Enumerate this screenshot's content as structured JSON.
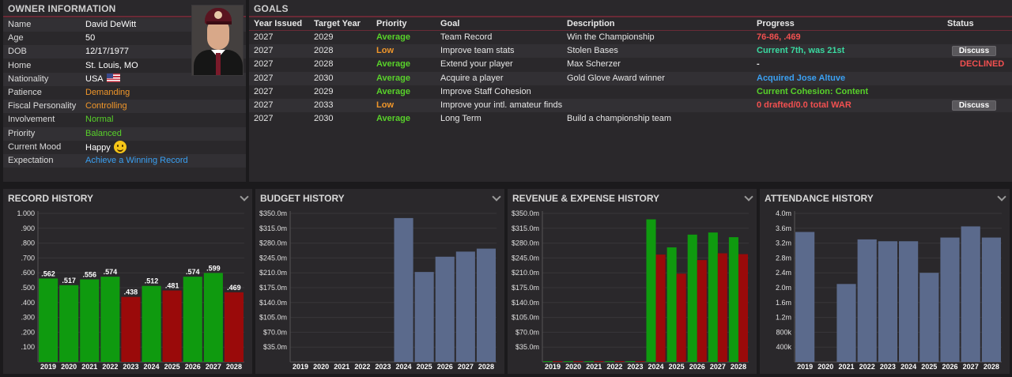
{
  "owner": {
    "title": "OWNER INFORMATION",
    "rows": [
      {
        "label": "Name",
        "value": "David DeWitt"
      },
      {
        "label": "Age",
        "value": "50"
      },
      {
        "label": "DOB",
        "value": "12/17/1977"
      },
      {
        "label": "Home",
        "value": "St. Louis, MO"
      },
      {
        "label": "Nationality",
        "value": "USA"
      },
      {
        "label": "Patience",
        "value": "Demanding"
      },
      {
        "label": "Fiscal Personality",
        "value": "Controlling"
      },
      {
        "label": "Involvement",
        "value": "Normal"
      },
      {
        "label": "Priority",
        "value": "Balanced"
      },
      {
        "label": "Current Mood",
        "value": "Happy"
      },
      {
        "label": "Expectation",
        "value": "Achieve a Winning Record"
      }
    ],
    "icons": {
      "flag": "us-flag-icon",
      "mood": "smiley-icon",
      "portrait": "owner-portrait"
    }
  },
  "goals": {
    "title": "GOALS",
    "headers": [
      "Year Issued",
      "Target Year",
      "Priority",
      "Goal",
      "Description",
      "Progress",
      "Status"
    ],
    "rows": [
      {
        "issued": "2027",
        "target": "2029",
        "priority": "Average",
        "goal": "Team Record",
        "desc": "Win the Championship",
        "progress": "76-86, .469",
        "status": ""
      },
      {
        "issued": "2027",
        "target": "2028",
        "priority": "Low",
        "goal": "Improve team stats",
        "desc": "Stolen Bases",
        "progress": "Current 7th, was 21st",
        "status": "Discuss"
      },
      {
        "issued": "2027",
        "target": "2028",
        "priority": "Average",
        "goal": "Extend your player",
        "desc": "Max Scherzer",
        "progress": "-",
        "status": "DECLINED"
      },
      {
        "issued": "2027",
        "target": "2030",
        "priority": "Average",
        "goal": "Acquire a player",
        "desc": "Gold Glove Award winner",
        "progress": "Acquired Jose Altuve",
        "status": ""
      },
      {
        "issued": "2027",
        "target": "2029",
        "priority": "Average",
        "goal": "Improve Staff Cohesion",
        "desc": "",
        "progress": "Current Cohesion: Content",
        "status": ""
      },
      {
        "issued": "2027",
        "target": "2033",
        "priority": "Low",
        "goal": "Improve your intl. amateur finds",
        "desc": "",
        "progress": "0 drafted/0.0 total WAR",
        "status": "Discuss"
      },
      {
        "issued": "2027",
        "target": "2030",
        "priority": "Average",
        "goal": "Long Term",
        "desc": "Build a championship team",
        "progress": "",
        "status": ""
      }
    ]
  },
  "colors": {
    "green": "#0f9a0f",
    "red": "#9a0a0a",
    "slate": "#5b6a8c",
    "accent": "#6a2a36"
  },
  "chart_data": [
    {
      "type": "bar",
      "title": "RECORD HISTORY",
      "categories": [
        "2019",
        "2020",
        "2021",
        "2022",
        "2023",
        "2024",
        "2025",
        "2026",
        "2027",
        "2028"
      ],
      "values": [
        0.562,
        0.517,
        0.556,
        0.574,
        0.438,
        0.512,
        0.481,
        0.574,
        0.599,
        0.469
      ],
      "labels": [
        ".562",
        ".517",
        ".556",
        ".574",
        ".438",
        ".512",
        ".481",
        ".574",
        ".599",
        ".469"
      ],
      "bar_colors": [
        "green",
        "green",
        "green",
        "green",
        "red",
        "green",
        "red",
        "green",
        "green",
        "red"
      ],
      "yticks": [
        ".100",
        ".200",
        ".300",
        ".400",
        ".500",
        ".600",
        ".700",
        ".800",
        ".900",
        "1.000"
      ],
      "ylim": [
        0,
        1.0
      ]
    },
    {
      "type": "bar",
      "title": "BUDGET HISTORY",
      "categories": [
        "2019",
        "2020",
        "2021",
        "2022",
        "2023",
        "2024",
        "2025",
        "2026",
        "2027",
        "2028"
      ],
      "values": [
        0,
        0,
        0,
        0,
        0,
        339,
        212,
        248,
        260,
        267
      ],
      "yticks": [
        "$35.0m",
        "$70.0m",
        "$105.0m",
        "$140.0m",
        "$175.0m",
        "$210.0m",
        "$245.0m",
        "$280.0m",
        "$315.0m",
        "$350.0m"
      ],
      "ylim": [
        0,
        350
      ]
    },
    {
      "type": "bar",
      "title": "REVENUE & EXPENSE HISTORY",
      "categories": [
        "2019",
        "2020",
        "2021",
        "2022",
        "2023",
        "2024",
        "2025",
        "2026",
        "2027",
        "2028"
      ],
      "series": [
        {
          "values": [
            0,
            0,
            0,
            0,
            0,
            336,
            270,
            300,
            305,
            294
          ]
        },
        {
          "values": [
            0,
            0,
            0,
            0,
            0,
            253,
            208,
            240,
            256,
            254
          ]
        }
      ],
      "yticks": [
        "$35.0m",
        "$70.0m",
        "$105.0m",
        "$140.0m",
        "$175.0m",
        "$210.0m",
        "$245.0m",
        "$280.0m",
        "$315.0m",
        "$350.0m"
      ],
      "ylim": [
        0,
        350
      ]
    },
    {
      "type": "bar",
      "title": "ATTENDANCE HISTORY",
      "categories": [
        "2019",
        "2020",
        "2021",
        "2022",
        "2023",
        "2024",
        "2025",
        "2026",
        "2027",
        "2028"
      ],
      "values": [
        3.5,
        0,
        2.1,
        3.3,
        3.25,
        3.25,
        2.4,
        3.35,
        3.65,
        3.35
      ],
      "yticks": [
        "400k",
        "800k",
        "1.2m",
        "1.6m",
        "2.0m",
        "2.4m",
        "2.8m",
        "3.2m",
        "3.6m",
        "4.0m"
      ],
      "ylim": [
        0,
        4.0
      ]
    }
  ]
}
